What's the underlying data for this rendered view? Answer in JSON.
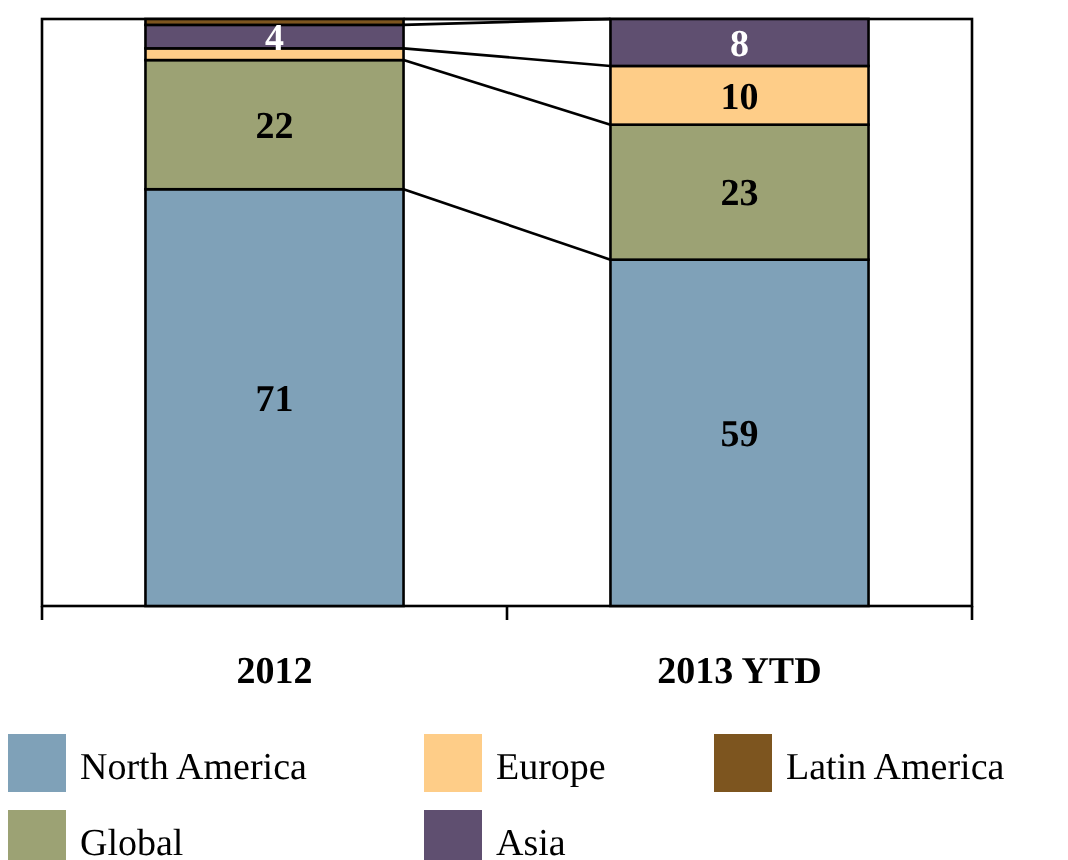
{
  "chart_data": {
    "type": "bar",
    "stacked": true,
    "categories": [
      "2012",
      "2013 YTD"
    ],
    "ylim": [
      0,
      100
    ],
    "legend": "bottom",
    "series": [
      {
        "name": "North America",
        "color": "#7fa1b8",
        "values": [
          71,
          59
        ],
        "value_labels": [
          "71",
          "59"
        ]
      },
      {
        "name": "Global",
        "color": "#9ca274",
        "values": [
          22,
          23
        ],
        "value_labels": [
          "22",
          "23"
        ]
      },
      {
        "name": "Europe",
        "color": "#fecd88",
        "values": [
          2,
          10
        ],
        "value_labels": [
          null,
          "10"
        ]
      },
      {
        "name": "Asia",
        "color": "#5f4f70",
        "values": [
          4,
          8
        ],
        "value_labels": [
          "4",
          "8"
        ]
      },
      {
        "name": "Latin America",
        "color": "#7d551f",
        "values": [
          1,
          0
        ],
        "value_labels": [
          null,
          null
        ]
      }
    ]
  }
}
